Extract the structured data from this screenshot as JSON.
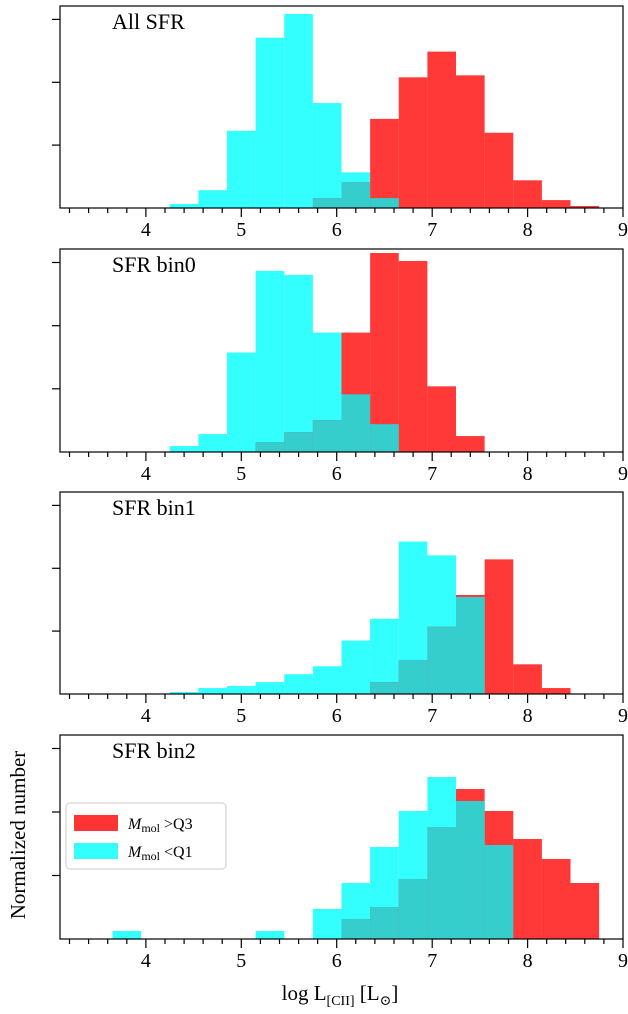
{
  "figure": {
    "ylabel": "Normalized number",
    "xlabel_main": "log L",
    "xlabel_sub": "[CII]",
    "xlabel_unit_open": " [L",
    "xlabel_unit_sym": "⊙",
    "xlabel_unit_close": "]"
  },
  "legend": {
    "placement": "in panel 4, middle-left",
    "entries": [
      {
        "symbol": "M",
        "sub": "mol",
        "rel": " >Q3",
        "color": "#ff0000"
      },
      {
        "symbol": "M",
        "sub": "mol",
        "rel": " <Q1",
        "color": "#00ffff"
      }
    ]
  },
  "colors": {
    "red": "#ff0000",
    "cyan": "#00ffff",
    "overlap": "#36cdcd"
  },
  "chart_data": [
    {
      "type": "bar",
      "title": "All SFR",
      "xlim": [
        3.1,
        9.0
      ],
      "ylim": [
        0,
        1.0
      ],
      "xticks": [
        "4",
        "5",
        "6",
        "7",
        "8",
        "9"
      ],
      "series": [
        {
          "name": "Mmol <Q1",
          "color": "#00ffff",
          "bins": [
            [
              4.25,
              4.55,
              0.02
            ],
            [
              4.55,
              4.85,
              0.09
            ],
            [
              4.85,
              5.15,
              0.39
            ],
            [
              5.15,
              5.45,
              0.86
            ],
            [
              5.45,
              5.75,
              0.98
            ],
            [
              5.75,
              6.05,
              0.53
            ],
            [
              6.05,
              6.35,
              0.18
            ],
            [
              6.35,
              6.65,
              0.05
            ]
          ]
        },
        {
          "name": "Mmol >Q3",
          "color": "#ff0000",
          "bins": [
            [
              5.75,
              6.05,
              0.05
            ],
            [
              6.05,
              6.35,
              0.13
            ],
            [
              6.35,
              6.65,
              0.45
            ],
            [
              6.65,
              6.95,
              0.66
            ],
            [
              6.95,
              7.25,
              0.79
            ],
            [
              7.25,
              7.55,
              0.67
            ],
            [
              7.55,
              7.85,
              0.38
            ],
            [
              7.85,
              8.15,
              0.14
            ],
            [
              8.15,
              8.45,
              0.04
            ],
            [
              8.45,
              8.75,
              0.01
            ]
          ]
        }
      ]
    },
    {
      "type": "bar",
      "title": "SFR bin0",
      "xlim": [
        3.1,
        9.0
      ],
      "ylim": [
        0,
        1.0
      ],
      "xticks": [
        "4",
        "5",
        "6",
        "7",
        "8",
        "9"
      ],
      "series": [
        {
          "name": "Mmol <Q1",
          "color": "#00ffff",
          "bins": [
            [
              4.25,
              4.55,
              0.03
            ],
            [
              4.55,
              4.85,
              0.09
            ],
            [
              4.85,
              5.15,
              0.5
            ],
            [
              5.15,
              5.45,
              0.91
            ],
            [
              5.45,
              5.75,
              0.89
            ],
            [
              5.75,
              6.05,
              0.6
            ],
            [
              6.05,
              6.35,
              0.29
            ],
            [
              6.35,
              6.65,
              0.14
            ]
          ]
        },
        {
          "name": "Mmol >Q3",
          "color": "#ff0000",
          "bins": [
            [
              5.15,
              5.45,
              0.05
            ],
            [
              5.45,
              5.75,
              0.1
            ],
            [
              5.75,
              6.05,
              0.16
            ],
            [
              6.05,
              6.35,
              0.6
            ],
            [
              6.35,
              6.65,
              1.0
            ],
            [
              6.65,
              6.95,
              0.96
            ],
            [
              6.95,
              7.25,
              0.33
            ],
            [
              7.25,
              7.55,
              0.08
            ]
          ]
        }
      ]
    },
    {
      "type": "bar",
      "title": "SFR bin1",
      "xlim": [
        3.1,
        9.0
      ],
      "ylim": [
        0,
        1.0
      ],
      "xticks": [
        "4",
        "5",
        "6",
        "7",
        "8",
        "9"
      ],
      "series": [
        {
          "name": "Mmol <Q1",
          "color": "#00ffff",
          "bins": [
            [
              4.25,
              4.55,
              0.01
            ],
            [
              4.55,
              4.85,
              0.03
            ],
            [
              4.85,
              5.15,
              0.04
            ],
            [
              5.15,
              5.45,
              0.06
            ],
            [
              5.45,
              5.75,
              0.1
            ],
            [
              5.75,
              6.05,
              0.14
            ],
            [
              6.05,
              6.35,
              0.27
            ],
            [
              6.35,
              6.65,
              0.38
            ],
            [
              6.65,
              6.95,
              0.77
            ],
            [
              6.95,
              7.25,
              0.7
            ],
            [
              7.25,
              7.55,
              0.49
            ]
          ]
        },
        {
          "name": "Mmol >Q3",
          "color": "#ff0000",
          "bins": [
            [
              6.35,
              6.65,
              0.06
            ],
            [
              6.65,
              6.95,
              0.17
            ],
            [
              6.95,
              7.25,
              0.34
            ],
            [
              7.25,
              7.55,
              0.5
            ],
            [
              7.55,
              7.85,
              0.68
            ],
            [
              7.85,
              8.15,
              0.15
            ],
            [
              8.15,
              8.45,
              0.03
            ]
          ]
        }
      ]
    },
    {
      "type": "bar",
      "title": "SFR bin2",
      "xlim": [
        3.1,
        9.0
      ],
      "ylim": [
        0,
        1.0
      ],
      "xticks": [
        "4",
        "5",
        "6",
        "7",
        "8",
        "9"
      ],
      "series": [
        {
          "name": "Mmol <Q1",
          "color": "#00ffff",
          "bins": [
            [
              3.65,
              3.95,
              0.04
            ],
            [
              5.15,
              5.45,
              0.04
            ],
            [
              5.75,
              6.05,
              0.15
            ],
            [
              6.05,
              6.35,
              0.28
            ],
            [
              6.35,
              6.65,
              0.46
            ],
            [
              6.65,
              6.95,
              0.64
            ],
            [
              6.95,
              7.25,
              0.81
            ],
            [
              7.25,
              7.55,
              0.69
            ],
            [
              7.55,
              7.85,
              0.47
            ]
          ]
        },
        {
          "name": "Mmol >Q3",
          "color": "#ff0000",
          "bins": [
            [
              6.05,
              6.35,
              0.1
            ],
            [
              6.35,
              6.65,
              0.16
            ],
            [
              6.65,
              6.95,
              0.3
            ],
            [
              6.95,
              7.25,
              0.56
            ],
            [
              7.25,
              7.55,
              0.75
            ],
            [
              7.55,
              7.85,
              0.64
            ],
            [
              7.85,
              8.15,
              0.5
            ],
            [
              8.15,
              8.45,
              0.4
            ],
            [
              8.45,
              8.75,
              0.28
            ]
          ]
        }
      ]
    }
  ]
}
